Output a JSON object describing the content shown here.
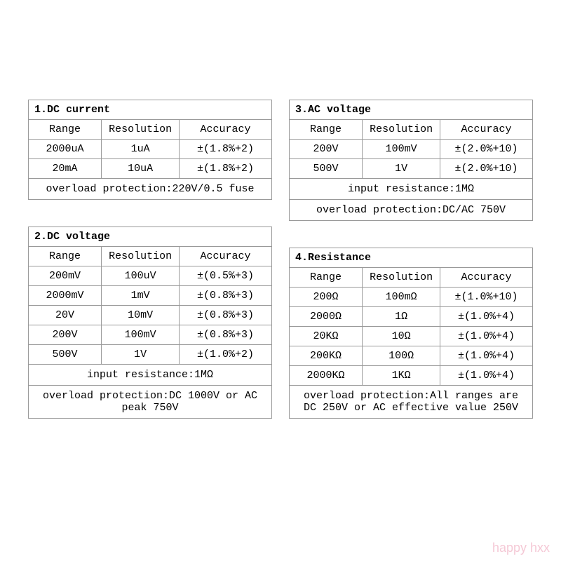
{
  "watermark": "happy hxx",
  "headers": {
    "range": "Range",
    "resolution": "Resolution",
    "accuracy": "Accuracy"
  },
  "tables": [
    {
      "title": "1.DC current",
      "rows": [
        {
          "range": "2000uA",
          "resolution": "1uA",
          "accuracy": "±(1.8%+2)"
        },
        {
          "range": "20mA",
          "resolution": "10uA",
          "accuracy": "±(1.8%+2)"
        }
      ],
      "notes": [
        "overload protection:220V/0.5 fuse"
      ]
    },
    {
      "title": "2.DC voltage",
      "rows": [
        {
          "range": "200mV",
          "resolution": "100uV",
          "accuracy": "±(0.5%+3)"
        },
        {
          "range": "2000mV",
          "resolution": "1mV",
          "accuracy": "±(0.8%+3)"
        },
        {
          "range": "20V",
          "resolution": "10mV",
          "accuracy": "±(0.8%+3)"
        },
        {
          "range": "200V",
          "resolution": "100mV",
          "accuracy": "±(0.8%+3)"
        },
        {
          "range": "500V",
          "resolution": "1V",
          "accuracy": "±(1.0%+2)"
        }
      ],
      "notes": [
        "input resistance:1MΩ",
        "overload protection:DC 1000V or AC peak 750V"
      ]
    },
    {
      "title": "3.AC voltage",
      "rows": [
        {
          "range": "200V",
          "resolution": "100mV",
          "accuracy": "±(2.0%+10)"
        },
        {
          "range": "500V",
          "resolution": "1V",
          "accuracy": "±(2.0%+10)"
        }
      ],
      "notes": [
        "input resistance:1MΩ",
        "overload protection:DC/AC 750V"
      ]
    },
    {
      "title": "4.Resistance",
      "rows": [
        {
          "range": "200Ω",
          "resolution": "100mΩ",
          "accuracy": "±(1.0%+10)"
        },
        {
          "range": "2000Ω",
          "resolution": "1Ω",
          "accuracy": "±(1.0%+4)"
        },
        {
          "range": "20KΩ",
          "resolution": "10Ω",
          "accuracy": "±(1.0%+4)"
        },
        {
          "range": "200KΩ",
          "resolution": "100Ω",
          "accuracy": "±(1.0%+4)"
        },
        {
          "range": "2000KΩ",
          "resolution": "1KΩ",
          "accuracy": "±(1.0%+4)"
        }
      ],
      "notes": [
        "overload protection:All ranges are DC 250V or AC effective value 250V"
      ]
    }
  ]
}
